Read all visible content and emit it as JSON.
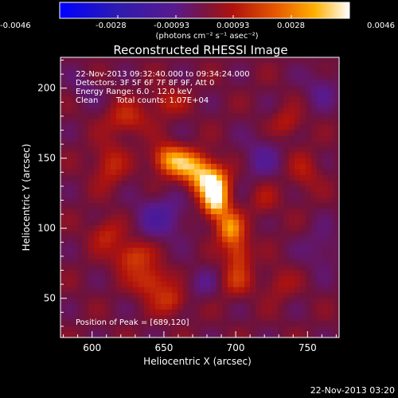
{
  "chart_data": {
    "type": "heatmap",
    "title": "Reconstructed RHESSI Image",
    "xlabel": "Heliocentric X (arcsec)",
    "ylabel": "Heliocentric Y (arcsec)",
    "xlim": [
      578,
      772
    ],
    "ylim": [
      22,
      222
    ],
    "xticks": [
      600,
      650,
      700,
      750
    ],
    "yticks": [
      50,
      100,
      150,
      200
    ],
    "colorbar": {
      "ticks": [
        "-0.0046",
        "-0.0028",
        "-0.00093",
        "0.00093",
        "0.0028",
        "0.0046"
      ],
      "min": -0.0046,
      "max": 0.0046,
      "unit_text": "(photons cm⁻² s⁻¹ asec⁻²)"
    },
    "annotations": {
      "time_range": "22-Nov-2013 09:32:40.000 to 09:34:24.000",
      "detectors": "Detectors: 3F 5F 6F 7F 8F 9F, Att 0",
      "energy_range": "Energy Range: 6.0 - 12.0 keV",
      "clean_label": "Clean",
      "total_counts": "Total counts: 1.07E+04",
      "peak_position": "Position of Peak = [689,120]"
    },
    "sources": [
      {
        "x": 686,
        "y": 120,
        "amp": 0.0044,
        "sx": 6,
        "sy": 9
      },
      {
        "x": 681,
        "y": 134,
        "amp": 0.0038,
        "sx": 9,
        "sy": 8
      },
      {
        "x": 667,
        "y": 145,
        "amp": 0.0029,
        "sx": 10,
        "sy": 7
      },
      {
        "x": 653,
        "y": 150,
        "amp": 0.0024,
        "sx": 8,
        "sy": 7
      },
      {
        "x": 696,
        "y": 100,
        "amp": 0.003,
        "sx": 6,
        "sy": 8
      },
      {
        "x": 702,
        "y": 82,
        "amp": 0.0018,
        "sx": 6,
        "sy": 9
      },
      {
        "x": 700,
        "y": 62,
        "amp": 0.0012,
        "sx": 8,
        "sy": 8
      },
      {
        "x": 628,
        "y": 80,
        "amp": 0.0018,
        "sx": 9,
        "sy": 8
      },
      {
        "x": 641,
        "y": 62,
        "amp": 0.0017,
        "sx": 9,
        "sy": 8
      },
      {
        "x": 655,
        "y": 48,
        "amp": 0.0014,
        "sx": 8,
        "sy": 7
      },
      {
        "x": 610,
        "y": 96,
        "amp": 0.0012,
        "sx": 8,
        "sy": 8
      },
      {
        "x": 612,
        "y": 145,
        "amp": 0.0013,
        "sx": 8,
        "sy": 11
      },
      {
        "x": 624,
        "y": 178,
        "amp": 0.0014,
        "sx": 10,
        "sy": 8
      },
      {
        "x": 652,
        "y": 190,
        "amp": 0.0011,
        "sx": 9,
        "sy": 7
      },
      {
        "x": 736,
        "y": 175,
        "amp": 0.0011,
        "sx": 7,
        "sy": 7
      },
      {
        "x": 748,
        "y": 140,
        "amp": 0.0009,
        "sx": 8,
        "sy": 10
      },
      {
        "x": 720,
        "y": 120,
        "amp": 0.0008,
        "sx": 7,
        "sy": 9
      },
      {
        "x": 730,
        "y": 60,
        "amp": 0.0008,
        "sx": 8,
        "sy": 8
      },
      {
        "x": 648,
        "y": 108,
        "amp": -0.0013,
        "sx": 13,
        "sy": 11
      },
      {
        "x": 718,
        "y": 150,
        "amp": -0.0009,
        "sx": 10,
        "sy": 12
      },
      {
        "x": 760,
        "y": 200,
        "amp": -0.0008,
        "sx": 9,
        "sy": 10
      },
      {
        "x": 760,
        "y": 85,
        "amp": -0.0008,
        "sx": 9,
        "sy": 11
      },
      {
        "x": 676,
        "y": 60,
        "amp": -0.0007,
        "sx": 9,
        "sy": 8
      },
      {
        "x": 595,
        "y": 200,
        "amp": -0.0006,
        "sx": 8,
        "sy": 8
      }
    ]
  },
  "footer": {
    "timestamp": "22-Nov-2013 03:20"
  }
}
